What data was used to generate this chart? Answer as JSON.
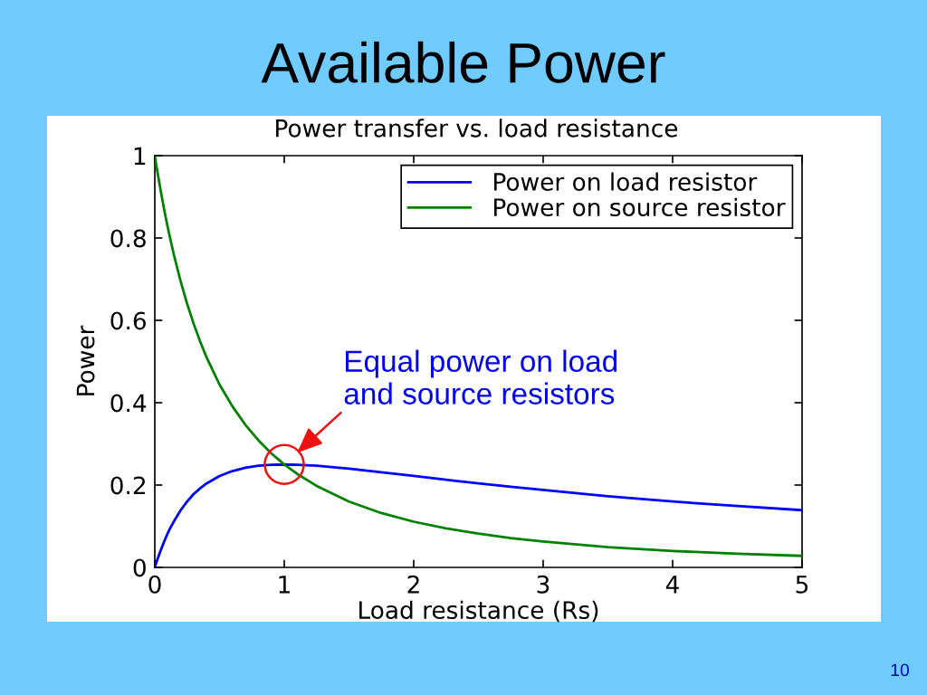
{
  "chart_data": {
    "type": "line",
    "title": "Available Power",
    "subtitle": "Power transfer vs. load resistance",
    "xlabel": "Load resistance (Rs)",
    "ylabel": "Power",
    "x": [
      0,
      0.01,
      0.02,
      0.03,
      0.05,
      0.075,
      0.1,
      0.125,
      0.15,
      0.2,
      0.25,
      0.3,
      0.35,
      0.4,
      0.5,
      0.6,
      0.7,
      0.8,
      0.9,
      1,
      1.1,
      1.25,
      1.5,
      1.75,
      2,
      2.25,
      2.5,
      2.75,
      3,
      3.5,
      4,
      4.5,
      5
    ],
    "series": [
      {
        "name": "Power on load resistor",
        "color": "#0000ff",
        "values": [
          0,
          0.01,
          0.019,
          0.028,
          0.045,
          0.065,
          0.083,
          0.099,
          0.113,
          0.139,
          0.16,
          0.178,
          0.192,
          0.204,
          0.222,
          0.234,
          0.242,
          0.247,
          0.249,
          0.25,
          0.249,
          0.247,
          0.24,
          0.231,
          0.222,
          0.213,
          0.204,
          0.196,
          0.188,
          0.173,
          0.16,
          0.149,
          0.139
        ]
      },
      {
        "name": "Power on source resistor",
        "color": "#008000",
        "values": [
          1,
          0.98,
          0.961,
          0.943,
          0.907,
          0.865,
          0.826,
          0.79,
          0.756,
          0.694,
          0.64,
          0.592,
          0.549,
          0.51,
          0.444,
          0.391,
          0.346,
          0.309,
          0.277,
          0.25,
          0.227,
          0.198,
          0.16,
          0.132,
          0.111,
          0.095,
          0.082,
          0.071,
          0.063,
          0.049,
          0.04,
          0.033,
          0.028
        ]
      }
    ],
    "xlim": [
      0,
      5
    ],
    "ylim": [
      0,
      1
    ],
    "xticks": [
      0,
      1,
      2,
      3,
      4,
      5
    ],
    "yticks": [
      0,
      0.2,
      0.4,
      0.6,
      0.8,
      1
    ],
    "legend": "top right",
    "grid": false,
    "annotations": [
      {
        "text": "Equal power on load\nand source resistors",
        "x": 1,
        "y": 0.25
      },
      "10"
    ]
  }
}
